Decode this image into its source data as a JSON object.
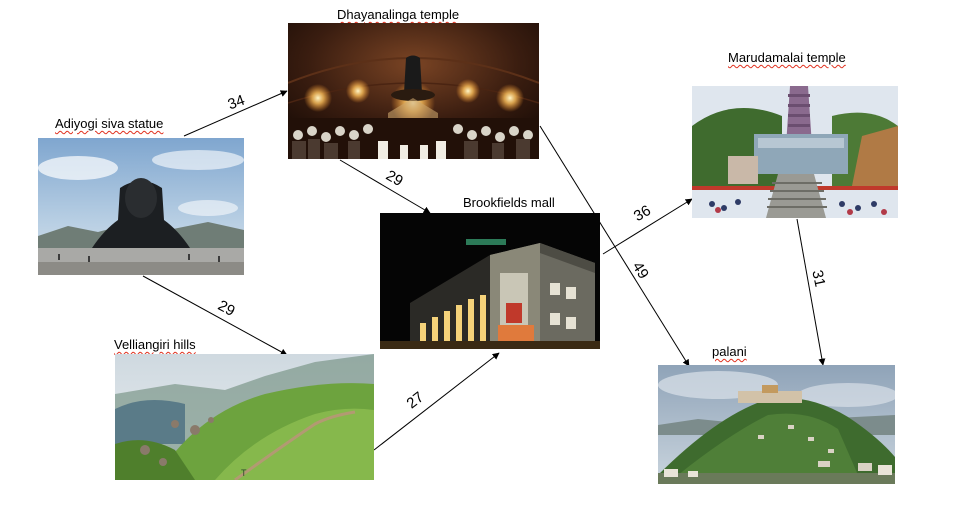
{
  "nodes": {
    "adiyogi": {
      "label": "Adiyogi siva statue"
    },
    "dhyanalinga": {
      "label": "Dhayanalinga temple"
    },
    "brookfields": {
      "label": "Brookfields mall"
    },
    "marudamalai": {
      "label": "Marudamalai temple"
    },
    "velliangiri": {
      "label": "Velliangiri hills"
    },
    "palani": {
      "label": "palani"
    }
  },
  "edges": [
    {
      "from": "Adiyogi siva statue",
      "to": "Dhayanalinga temple",
      "weight": "34"
    },
    {
      "from": "Dhayanalinga temple",
      "to": "Brookfields mall",
      "weight": "29"
    },
    {
      "from": "Adiyogi siva statue",
      "to": "Velliangiri hills",
      "weight": "29"
    },
    {
      "from": "Velliangiri hills",
      "to": "Brookfields mall",
      "weight": "27"
    },
    {
      "from": "Brookfields mall",
      "to": "Marudamalai temple",
      "weight": "36"
    },
    {
      "from": "Dhayanalinga temple",
      "to": "palani",
      "weight": "49"
    },
    {
      "from": "Marudamalai temple",
      "to": "palani",
      "weight": "31"
    }
  ],
  "colors": {
    "arrow": "#000000",
    "spellcheck_underline": "#e0301e"
  }
}
